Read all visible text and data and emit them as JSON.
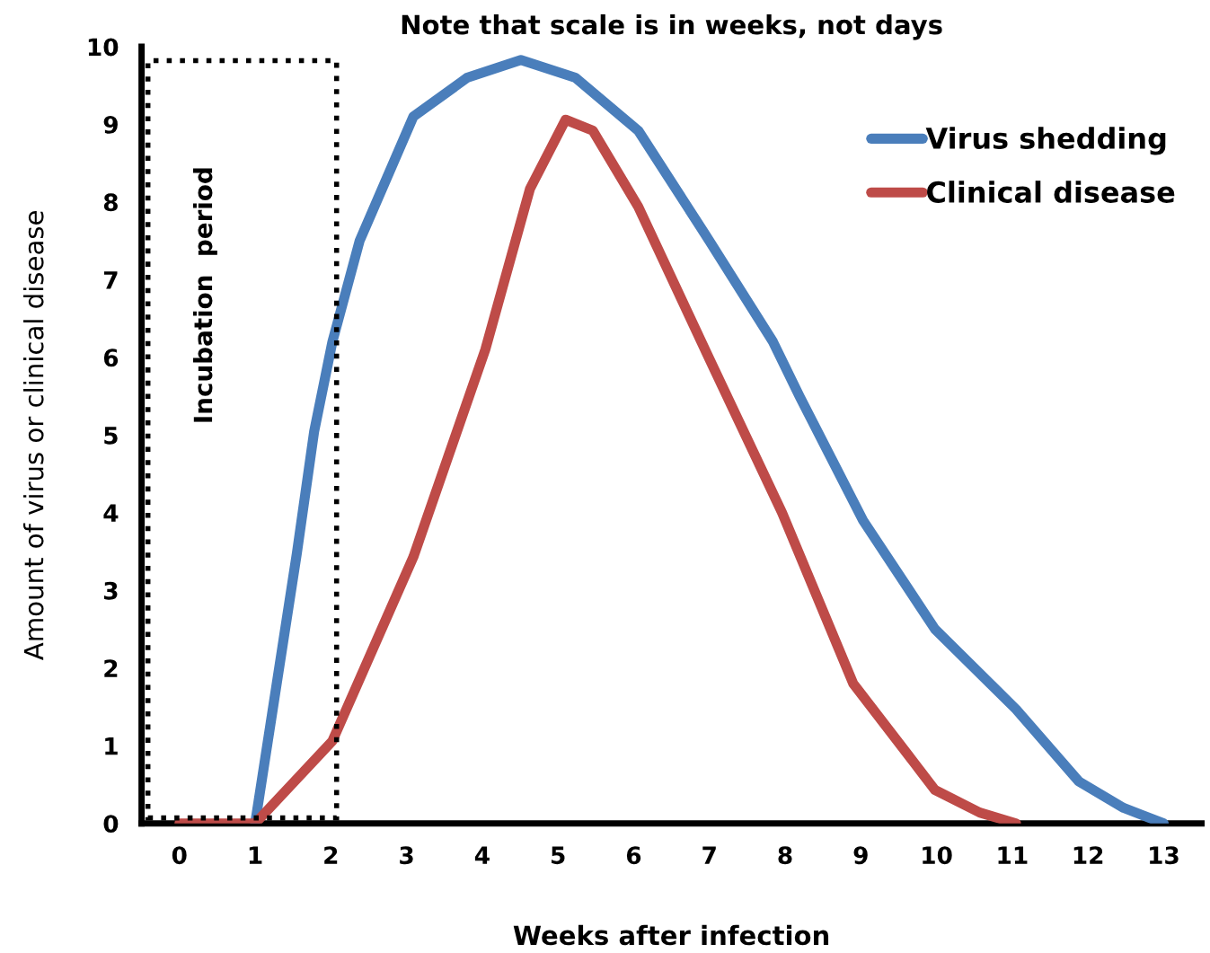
{
  "chart_data": {
    "type": "line",
    "title": "Note that scale is in weeks, not days",
    "xlabel": "Weeks after infection",
    "ylabel": "Amount of virus or clinical disease",
    "xlim": [
      -0.5,
      13.5
    ],
    "ylim": [
      0,
      10
    ],
    "xticks": [
      0,
      1,
      2,
      3,
      4,
      5,
      6,
      7,
      8,
      9,
      10,
      11,
      12,
      13
    ],
    "yticks": [
      0,
      1,
      2,
      3,
      4,
      5,
      6,
      7,
      8,
      9,
      10
    ],
    "grid": false,
    "legend": "top right",
    "marker": "none",
    "line_style": "solid",
    "annotations": [
      "Incubation  period"
    ],
    "series": [
      {
        "name": "Virus shedding",
        "color": "#4a7ebb",
        "x": [
          1,
          1.55,
          1.78,
          2.02,
          2.38,
          3.09,
          3.8,
          4.51,
          5.23,
          6.06,
          7.0,
          7.84,
          8.19,
          9.03,
          9.98,
          11.05,
          11.88,
          12.47,
          13
        ],
        "values": [
          0,
          3.47,
          5.05,
          6.2,
          7.5,
          9.1,
          9.6,
          9.83,
          9.6,
          8.92,
          7.5,
          6.2,
          5.5,
          3.9,
          2.5,
          1.47,
          0.54,
          0.2,
          0
        ]
      },
      {
        "name": "Clinical disease",
        "color": "#be4b48",
        "x": [
          0,
          1,
          2.02,
          3.09,
          4.04,
          4.63,
          5.1,
          5.46,
          6.06,
          7.0,
          7.96,
          8.9,
          9.98,
          10.57,
          11.05
        ],
        "values": [
          0,
          0,
          1.06,
          3.43,
          6.1,
          8.17,
          9.06,
          8.92,
          7.94,
          5.98,
          4.0,
          1.8,
          0.43,
          0.14,
          0
        ]
      }
    ]
  }
}
